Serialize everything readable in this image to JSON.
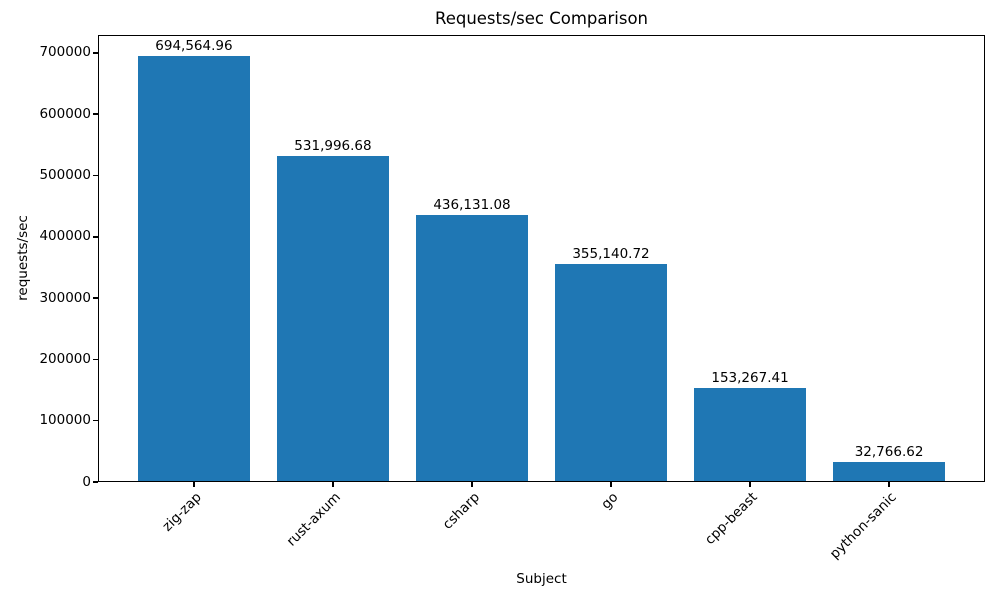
{
  "chart_data": {
    "type": "bar",
    "title": "Requests/sec Comparison",
    "xlabel": "Subject",
    "ylabel": "requests/sec",
    "categories": [
      "zig-zap",
      "rust-axum",
      "csharp",
      "go",
      "cpp-beast",
      "python-sanic"
    ],
    "values": [
      694564.96,
      531996.68,
      436131.08,
      355140.72,
      153267.41,
      32766.62
    ],
    "value_labels": [
      "694,564.96",
      "531,996.68",
      "436,131.08",
      "355,140.72",
      "153,267.41",
      "32,766.62"
    ],
    "y_ticks": [
      0,
      100000,
      200000,
      300000,
      400000,
      500000,
      600000,
      700000
    ],
    "ylim": [
      0,
      729293
    ],
    "xtick_label_rotation_deg": 45,
    "grid": false,
    "bar_color": "#1f77b4",
    "text_color": "#000000",
    "background_color": "#ffffff"
  }
}
